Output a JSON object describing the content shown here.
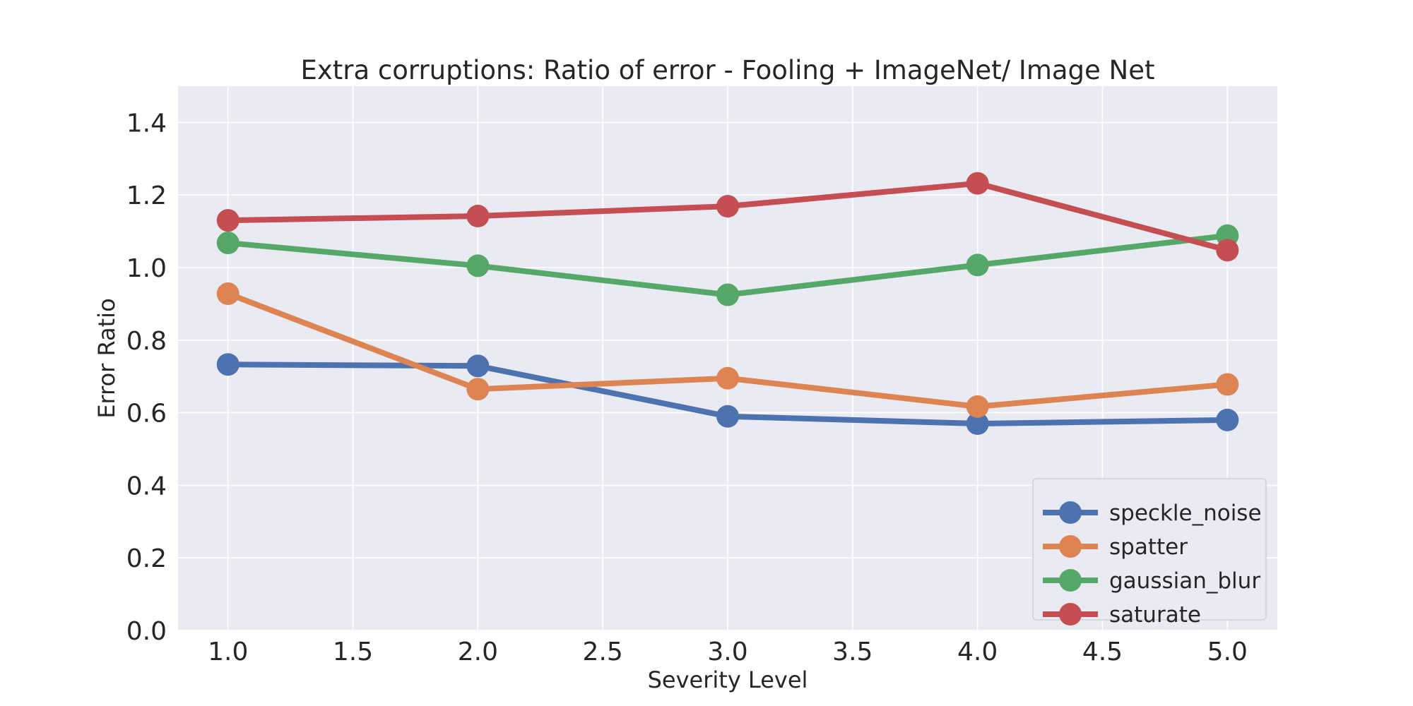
{
  "chart_data": {
    "type": "line",
    "title": "Extra corruptions: Ratio of error - Fooling + ImageNet/ Image Net",
    "xlabel": "Severity Level",
    "ylabel": "Error Ratio",
    "xlim": [
      0.8,
      5.2
    ],
    "ylim": [
      0.0,
      1.5
    ],
    "xticks": [
      "1.0",
      "1.5",
      "2.0",
      "2.5",
      "3.0",
      "3.5",
      "4.0",
      "4.5",
      "5.0"
    ],
    "yticks": [
      "0.0",
      "0.2",
      "0.4",
      "0.6",
      "0.8",
      "1.0",
      "1.2",
      "1.4"
    ],
    "grid": true,
    "legend_position": "bottom-right",
    "x": [
      1.0,
      2.0,
      3.0,
      4.0,
      5.0
    ],
    "series": [
      {
        "name": "speckle_noise",
        "color": "#4c72b0",
        "values": [
          0.733,
          0.729,
          0.59,
          0.57,
          0.58
        ]
      },
      {
        "name": "spatter",
        "color": "#dd8452",
        "values": [
          0.928,
          0.665,
          0.695,
          0.617,
          0.678
        ]
      },
      {
        "name": "gaussian_blur",
        "color": "#55a868",
        "values": [
          1.068,
          1.005,
          0.925,
          1.007,
          1.088
        ]
      },
      {
        "name": "saturate",
        "color": "#c44e52",
        "values": [
          1.13,
          1.142,
          1.169,
          1.232,
          1.048
        ]
      }
    ],
    "background_color": "#eaeaf2",
    "grid_color": "#ffffff"
  }
}
